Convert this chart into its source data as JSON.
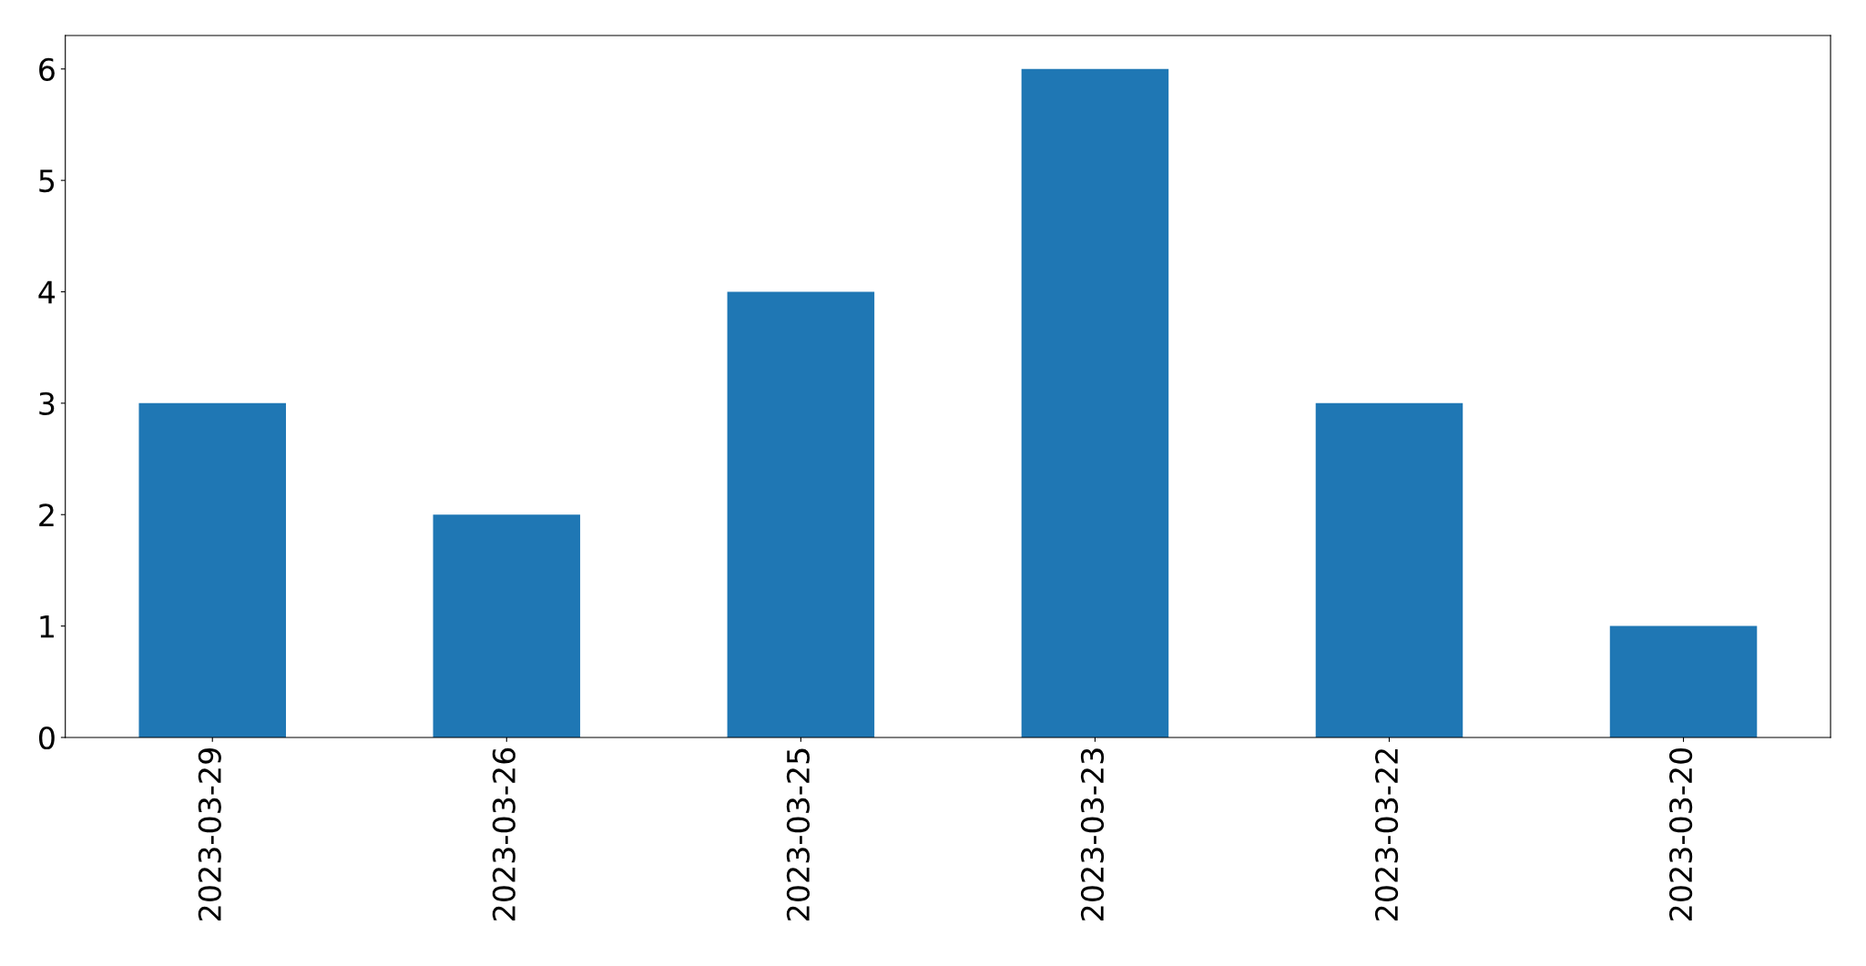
{
  "chart_data": {
    "type": "bar",
    "categories": [
      "2023-03-29",
      "2023-03-26",
      "2023-03-25",
      "2023-03-23",
      "2023-03-22",
      "2023-03-20"
    ],
    "values": [
      3,
      2,
      4,
      6,
      3,
      1
    ],
    "color": "#1f77b4",
    "ylim": [
      0,
      6.3
    ],
    "yticks": [
      0,
      1,
      2,
      3,
      4,
      5,
      6
    ],
    "grid": false
  }
}
